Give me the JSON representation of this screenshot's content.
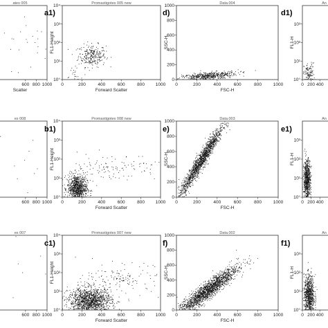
{
  "chart_data": [
    {
      "id": "a0",
      "type": "scatter",
      "panel_label": "",
      "title": "ates 005",
      "xlabel": "Scatter",
      "ylabel": "",
      "xlim": [
        0,
        1000
      ],
      "xticks": [
        "600",
        "800",
        "1000"
      ],
      "ylog": true,
      "yticks": [],
      "clusters": [
        {
          "x": 700,
          "y": 80,
          "sx": 300,
          "sy": 0.9,
          "n": 30
        }
      ]
    },
    {
      "id": "a1",
      "type": "scatter",
      "panel_label": "a1)",
      "title": "Promastigotes 005 new",
      "xlabel": "Forward Scatter",
      "ylabel": "FL1-Height",
      "xlim": [
        0,
        1000
      ],
      "xticks": [
        "0",
        "200",
        "400",
        "600",
        "800",
        "1000"
      ],
      "ylog": true,
      "yticks": [
        "10°",
        "10¹",
        "10²",
        "10³",
        "10⁴"
      ],
      "clusters": [
        {
          "x": 300,
          "y": 20,
          "sx": 70,
          "sy": 0.25,
          "n": 260
        },
        {
          "x": 120,
          "y": 1.5,
          "sx": 40,
          "sy": 0.2,
          "n": 25
        }
      ]
    },
    {
      "id": "d",
      "type": "scatter",
      "panel_label": "d)",
      "title": "Data.004",
      "xlabel": "FSC-H",
      "ylabel": "SSC-H",
      "xlim": [
        0,
        1000
      ],
      "xticks": [
        "0",
        "200",
        "400",
        "600",
        "800",
        "1000"
      ],
      "ylog": false,
      "ylim": [
        0,
        1000
      ],
      "yticks": [
        "0",
        "200",
        "400",
        "600",
        "800",
        "1000"
      ],
      "clusters": [
        {
          "x": 300,
          "y": 50,
          "sx": 150,
          "sy": 25,
          "n": 500,
          "slope": 0.12
        }
      ]
    },
    {
      "id": "d1",
      "type": "scatter",
      "panel_label": "d1)",
      "title": "An",
      "xlabel": "",
      "ylabel": "FL1-H",
      "xlim": [
        0,
        1000
      ],
      "xticks": [
        "0",
        "200",
        "400"
      ],
      "ylog": true,
      "yticks": [
        "10°",
        "10¹",
        "10²",
        "10³"
      ],
      "clusters": [
        {
          "x": 150,
          "y": 2,
          "sx": 60,
          "sy": 0.25,
          "n": 120
        }
      ]
    },
    {
      "id": "b0",
      "type": "scatter",
      "panel_label": "",
      "title": "es 008",
      "xlabel": "",
      "ylabel": "",
      "xlim": [
        0,
        1000
      ],
      "xticks": [
        "600",
        "800",
        "1000"
      ],
      "ylog": true,
      "yticks": [],
      "clusters": [
        {
          "x": 700,
          "y": 80,
          "sx": 300,
          "sy": 0.9,
          "n": 12
        }
      ]
    },
    {
      "id": "b1",
      "type": "scatter",
      "panel_label": "b1)",
      "title": "Promastigotes 008 new",
      "xlabel": "Forward Scatter",
      "ylabel": "FL1-Height",
      "xlim": [
        0,
        1000
      ],
      "xticks": [
        "0",
        "200",
        "400",
        "600",
        "800",
        "1000"
      ],
      "ylog": true,
      "yticks": [
        "10°",
        "10¹",
        "10²",
        "10³",
        "10⁴"
      ],
      "clusters": [
        {
          "x": 150,
          "y": 3,
          "sx": 50,
          "sy": 0.3,
          "n": 900
        },
        {
          "x": 500,
          "y": 40,
          "sx": 250,
          "sy": 0.3,
          "n": 120
        }
      ]
    },
    {
      "id": "e",
      "type": "scatter",
      "panel_label": "e)",
      "title": "Data.003",
      "xlabel": "FSC-H",
      "ylabel": "SSC-H",
      "xlim": [
        0,
        1000
      ],
      "xticks": [
        "0",
        "200",
        "400",
        "600",
        "800",
        "1000"
      ],
      "ylog": false,
      "ylim": [
        0,
        1000
      ],
      "yticks": [
        "0",
        "200",
        "400",
        "600",
        "800",
        "1000"
      ],
      "clusters": [
        {
          "x": 240,
          "y": 480,
          "sx": 110,
          "sy": 60,
          "n": 1500,
          "slope": 2.1
        }
      ]
    },
    {
      "id": "e1",
      "type": "scatter",
      "panel_label": "e1)",
      "title": "An",
      "xlabel": "",
      "ylabel": "FL1-H",
      "xlim": [
        0,
        1000
      ],
      "xticks": [
        "0",
        "200",
        "400"
      ],
      "ylog": true,
      "yticks": [
        "10°",
        "10¹",
        "10²",
        "10³"
      ],
      "clusters": [
        {
          "x": 100,
          "y": 8,
          "sx": 40,
          "sy": 0.45,
          "n": 700
        }
      ]
    },
    {
      "id": "c0",
      "type": "scatter",
      "panel_label": "",
      "title": "es 007",
      "xlabel": "",
      "ylabel": "",
      "xlim": [
        0,
        1000
      ],
      "xticks": [
        "600",
        "800",
        "1000"
      ],
      "ylog": true,
      "yticks": [],
      "clusters": [
        {
          "x": 700,
          "y": 80,
          "sx": 300,
          "sy": 0.9,
          "n": 12
        }
      ]
    },
    {
      "id": "c1",
      "type": "scatter",
      "panel_label": "c1)",
      "title": "Promastigotes 007 new",
      "xlabel": "Forward Scatter",
      "ylabel": "FL1-Height",
      "xlim": [
        0,
        1000
      ],
      "xticks": [
        "0",
        "200",
        "400",
        "600",
        "800",
        "1000"
      ],
      "ylog": true,
      "yticks": [
        "10°",
        "10¹",
        "10²",
        "10³",
        "10⁴"
      ],
      "clusters": [
        {
          "x": 280,
          "y": 3,
          "sx": 110,
          "sy": 0.3,
          "n": 1400
        },
        {
          "x": 650,
          "y": 50,
          "sx": 220,
          "sy": 0.3,
          "n": 150
        }
      ]
    },
    {
      "id": "f",
      "type": "scatter",
      "panel_label": "f)",
      "title": "Data.002",
      "xlabel": "FSC-H",
      "ylabel": "SSC-H",
      "xlim": [
        0,
        1000
      ],
      "xticks": [
        "0",
        "200",
        "400",
        "600",
        "800",
        "1000"
      ],
      "ylog": false,
      "ylim": [
        0,
        1000
      ],
      "yticks": [
        "0",
        "200",
        "400",
        "600",
        "800",
        "1000"
      ],
      "clusters": [
        {
          "x": 300,
          "y": 260,
          "sx": 150,
          "sy": 60,
          "n": 1800,
          "slope": 1.0
        }
      ]
    },
    {
      "id": "f1",
      "type": "scatter",
      "panel_label": "f1)",
      "title": "An",
      "xlabel": "",
      "ylabel": "FL1-H",
      "xlim": [
        0,
        1000
      ],
      "xticks": [
        "0",
        "200",
        "400"
      ],
      "ylog": true,
      "yticks": [
        "10°",
        "10¹",
        "10²",
        "10³"
      ],
      "clusters": [
        {
          "x": 150,
          "y": 6,
          "sx": 60,
          "sy": 0.45,
          "n": 800
        }
      ]
    }
  ]
}
